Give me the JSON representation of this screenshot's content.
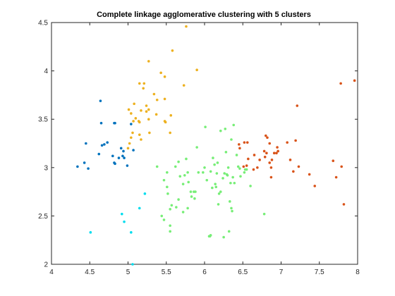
{
  "chart_data": {
    "type": "scatter",
    "title": "Complete linkage agglomerative clustering with 5 clusters",
    "xlabel": "",
    "ylabel": "",
    "xlim": [
      4,
      8
    ],
    "ylim": [
      2,
      4.5
    ],
    "xticks": [
      "4",
      "4.5",
      "5",
      "5.5",
      "6",
      "6.5",
      "7",
      "7.5",
      "8"
    ],
    "yticks": [
      "2",
      "2.5",
      "3",
      "3.5",
      "4",
      "4.5"
    ],
    "grid": false,
    "legend": "none",
    "series": [
      {
        "color": "#0072BD",
        "points": [
          [
            4.34,
            3.01
          ],
          [
            4.43,
            3.05
          ],
          [
            4.45,
            3.25
          ],
          [
            4.48,
            2.99
          ],
          [
            4.62,
            3.14
          ],
          [
            4.64,
            3.69
          ],
          [
            4.65,
            3.46
          ],
          [
            4.66,
            3.23
          ],
          [
            4.69,
            3.24
          ],
          [
            4.73,
            3.26
          ],
          [
            4.8,
            3.12
          ],
          [
            4.82,
            3.05
          ],
          [
            4.82,
            3.46
          ],
          [
            4.83,
            3.04
          ],
          [
            4.83,
            3.46
          ],
          [
            4.88,
            3.1
          ],
          [
            4.91,
            3.2
          ],
          [
            4.93,
            3.12
          ],
          [
            4.94,
            3.17
          ],
          [
            4.95,
            3.1
          ],
          [
            4.99,
            3.02
          ],
          [
            5.04,
            3.45
          ],
          [
            5.07,
            3.18
          ]
        ]
      },
      {
        "color": "#EDB120",
        "points": [
          [
            5.0,
            3.2
          ],
          [
            5.01,
            3.6
          ],
          [
            5.02,
            3.25
          ],
          [
            5.04,
            3.56
          ],
          [
            5.04,
            3.31
          ],
          [
            5.06,
            3.36
          ],
          [
            5.07,
            3.48
          ],
          [
            5.08,
            3.66
          ],
          [
            5.1,
            3.51
          ],
          [
            5.14,
            3.48
          ],
          [
            5.15,
            3.87
          ],
          [
            5.15,
            3.47
          ],
          [
            5.15,
            3.34
          ],
          [
            5.17,
            3.59
          ],
          [
            5.17,
            3.29
          ],
          [
            5.2,
            3.82
          ],
          [
            5.21,
            3.87
          ],
          [
            5.24,
            3.58
          ],
          [
            5.24,
            3.64
          ],
          [
            5.27,
            3.6
          ],
          [
            5.27,
            3.5
          ],
          [
            5.27,
            4.1
          ],
          [
            5.28,
            3.36
          ],
          [
            5.34,
            3.76
          ],
          [
            5.37,
            3.55
          ],
          [
            5.38,
            3.7
          ],
          [
            5.43,
            3.98
          ],
          [
            5.48,
            3.71
          ],
          [
            5.48,
            3.48
          ],
          [
            5.48,
            3.94
          ],
          [
            5.49,
            3.47
          ],
          [
            5.55,
            3.36
          ],
          [
            5.56,
            3.54
          ],
          [
            5.58,
            4.21
          ],
          [
            5.73,
            3.85
          ],
          [
            5.76,
            4.46
          ],
          [
            5.9,
            4.01
          ]
        ]
      },
      {
        "color": "#D95319",
        "points": [
          [
            6.45,
            3.24
          ],
          [
            6.46,
            3.2
          ],
          [
            6.51,
            3.01
          ],
          [
            6.52,
            3.26
          ],
          [
            6.55,
            3.02
          ],
          [
            6.56,
            3.26
          ],
          [
            6.57,
            3.09
          ],
          [
            6.64,
            2.98
          ],
          [
            6.65,
            3.13
          ],
          [
            6.69,
            3.0
          ],
          [
            6.72,
            3.08
          ],
          [
            6.78,
            3.17
          ],
          [
            6.79,
            3.11
          ],
          [
            6.8,
            3.33
          ],
          [
            6.81,
            3.15
          ],
          [
            6.82,
            3.31
          ],
          [
            6.85,
            3.25
          ],
          [
            6.85,
            3.05
          ],
          [
            6.87,
            3.0
          ],
          [
            6.87,
            2.9
          ],
          [
            6.88,
            3.08
          ],
          [
            6.91,
            3.15
          ],
          [
            6.94,
            3.15
          ],
          [
            6.95,
            3.21
          ],
          [
            6.96,
            3.17
          ],
          [
            7.08,
            3.26
          ],
          [
            7.12,
            3.08
          ],
          [
            7.16,
            2.96
          ],
          [
            7.19,
            3.28
          ],
          [
            7.21,
            3.64
          ],
          [
            7.23,
            3.01
          ],
          [
            7.37,
            2.93
          ],
          [
            7.44,
            2.81
          ],
          [
            7.68,
            3.07
          ],
          [
            7.72,
            2.9
          ],
          [
            7.78,
            3.87
          ],
          [
            7.79,
            3.01
          ],
          [
            7.82,
            2.62
          ],
          [
            7.96,
            3.9
          ]
        ]
      },
      {
        "color": "#00DDEE",
        "points": [
          [
            4.51,
            2.33
          ],
          [
            4.92,
            2.52
          ],
          [
            4.95,
            2.44
          ],
          [
            5.04,
            2.33
          ],
          [
            5.06,
            2.0
          ],
          [
            5.15,
            2.58
          ],
          [
            5.22,
            2.73
          ]
        ]
      },
      {
        "color": "#77EE77",
        "points": [
          [
            5.38,
            3.01
          ],
          [
            5.44,
            2.5
          ],
          [
            5.47,
            2.46
          ],
          [
            5.47,
            2.87
          ],
          [
            5.51,
            2.8
          ],
          [
            5.51,
            2.95
          ],
          [
            5.52,
            2.73
          ],
          [
            5.55,
            2.57
          ],
          [
            5.55,
            2.34
          ],
          [
            5.55,
            2.4
          ],
          [
            5.57,
            2.61
          ],
          [
            5.62,
            3.01
          ],
          [
            5.63,
            2.59
          ],
          [
            5.66,
            2.67
          ],
          [
            5.66,
            3.06
          ],
          [
            5.68,
            2.91
          ],
          [
            5.72,
            2.54
          ],
          [
            5.72,
            2.83
          ],
          [
            5.74,
            2.92
          ],
          [
            5.76,
            3.09
          ],
          [
            5.78,
            2.58
          ],
          [
            5.78,
            2.95
          ],
          [
            5.79,
            2.85
          ],
          [
            5.82,
            2.75
          ],
          [
            5.83,
            2.7
          ],
          [
            5.86,
            2.75
          ],
          [
            5.87,
            2.68
          ],
          [
            5.88,
            2.75
          ],
          [
            5.9,
            3.21
          ],
          [
            5.92,
            2.95
          ],
          [
            5.98,
            2.95
          ],
          [
            6.0,
            3.0
          ],
          [
            6.01,
            3.42
          ],
          [
            6.03,
            2.87
          ],
          [
            6.06,
            2.29
          ],
          [
            6.07,
            2.29
          ],
          [
            6.08,
            2.96
          ],
          [
            6.1,
            2.79
          ],
          [
            6.11,
            3.1
          ],
          [
            6.13,
            3.03
          ],
          [
            6.14,
            2.83
          ],
          [
            6.15,
            2.8
          ],
          [
            6.16,
            2.94
          ],
          [
            6.17,
            3.05
          ],
          [
            6.18,
            2.62
          ],
          [
            6.19,
            2.73
          ],
          [
            6.21,
            3.38
          ],
          [
            6.21,
            2.75
          ],
          [
            6.24,
            2.89
          ],
          [
            6.25,
            2.28
          ],
          [
            6.26,
            2.94
          ],
          [
            6.27,
            3.4
          ],
          [
            6.28,
            3.16
          ],
          [
            6.29,
            2.93
          ],
          [
            6.3,
            2.92
          ],
          [
            6.31,
            3.0
          ],
          [
            6.33,
            2.65
          ],
          [
            6.34,
            2.84
          ],
          [
            6.35,
            3.29
          ],
          [
            6.35,
            2.58
          ],
          [
            6.36,
            2.55
          ],
          [
            6.37,
            2.9
          ],
          [
            6.38,
            3.44
          ],
          [
            6.39,
            2.84
          ],
          [
            6.42,
            3.13
          ],
          [
            6.44,
            3.01
          ],
          [
            6.46,
            2.99
          ],
          [
            6.47,
            2.91
          ],
          [
            6.52,
            2.95
          ],
          [
            6.53,
            2.98
          ],
          [
            6.55,
            2.98
          ],
          [
            6.6,
            2.81
          ],
          [
            6.78,
            2.52
          ],
          [
            6.32,
            2.34
          ],
          [
            6.08,
            2.3
          ]
        ]
      }
    ]
  }
}
